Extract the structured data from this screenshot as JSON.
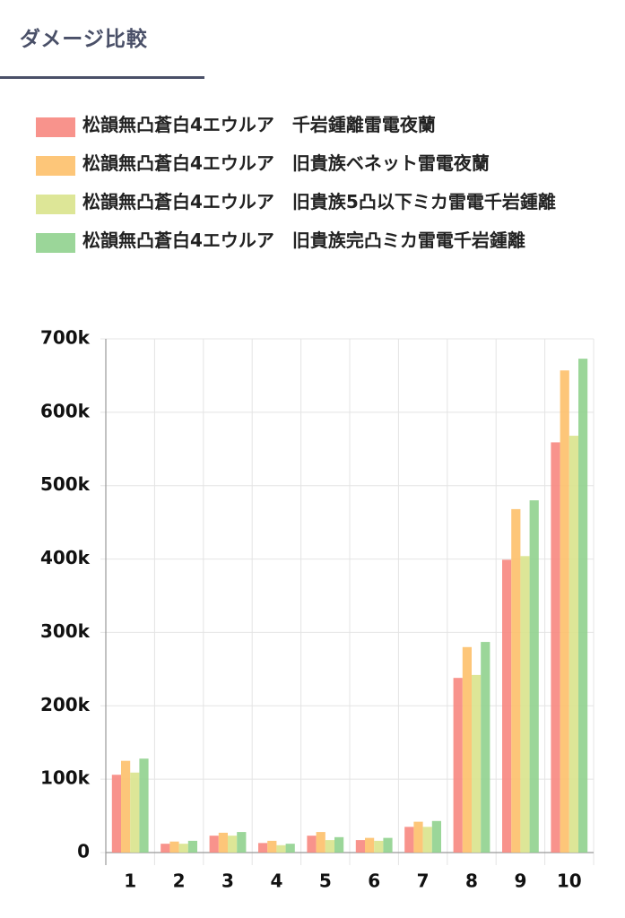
{
  "header": {
    "title": "ダメージ比較"
  },
  "chart_data": {
    "type": "bar",
    "categories": [
      "1",
      "2",
      "3",
      "4",
      "5",
      "6",
      "7",
      "8",
      "9",
      "10"
    ],
    "series": [
      {
        "name": "松韻無凸蒼白4エウルア　千岩鍾離雷電夜蘭",
        "color": "#f7877f",
        "values": [
          106000,
          12000,
          23000,
          13000,
          23000,
          17000,
          35000,
          238000,
          399000,
          559000
        ]
      },
      {
        "name": "松韻無凸蒼白4エウルア　旧貴族ベネット雷電夜蘭",
        "color": "#fdc06a",
        "values": [
          125000,
          15000,
          27000,
          16000,
          28000,
          20000,
          42000,
          280000,
          468000,
          657000
        ]
      },
      {
        "name": "松韻無凸蒼白4エウルア　旧貴族5凸以下ミカ雷電千岩鍾離",
        "color": "#d9e38c",
        "values": [
          109000,
          12000,
          23000,
          10000,
          17000,
          16000,
          35000,
          242000,
          404000,
          568000
        ]
      },
      {
        "name": "松韻無凸蒼白4エウルア　旧貴族完凸ミカ雷電千岩鍾離",
        "color": "#90d18e",
        "values": [
          128000,
          16000,
          28000,
          12000,
          21000,
          20000,
          43000,
          287000,
          480000,
          673000
        ]
      }
    ],
    "ylim": [
      0,
      700000
    ],
    "yticks": [
      0,
      {
        "value": 100000,
        "label": "100k"
      },
      {
        "value": 200000,
        "label": "200k"
      },
      {
        "value": 300000,
        "label": "300k"
      },
      {
        "value": 400000,
        "label": "400k"
      },
      {
        "value": 500000,
        "label": "500k"
      },
      {
        "value": 600000,
        "label": "600k"
      },
      {
        "value": 700000,
        "label": "700k"
      }
    ],
    "grid": true
  }
}
